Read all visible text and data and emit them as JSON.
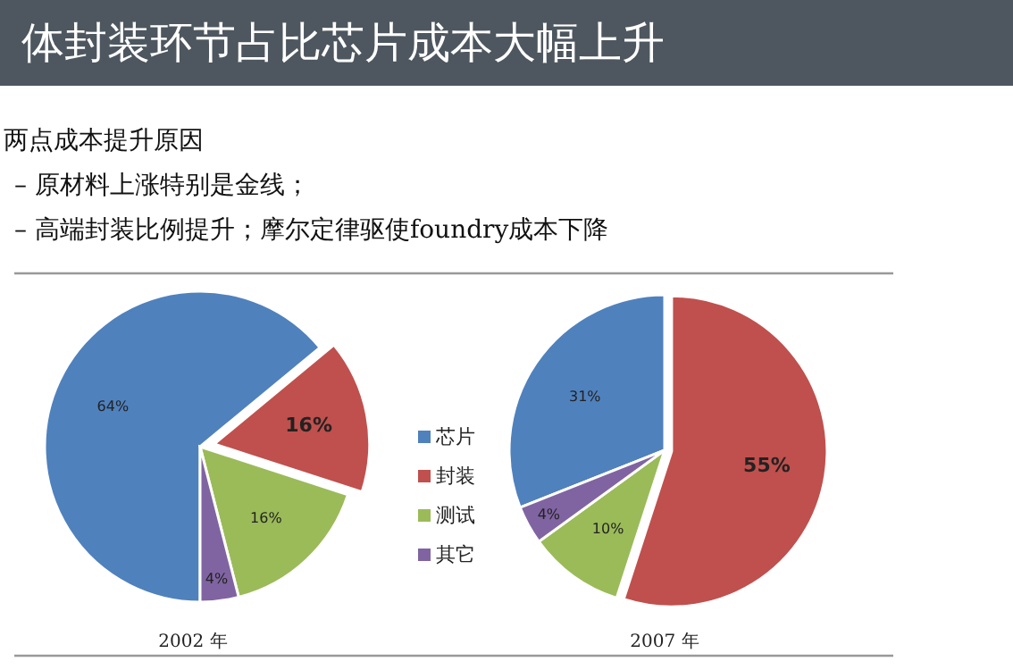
{
  "chart_data": [
    {
      "type": "pie",
      "title": "体封装环节占比芯片成本大幅上升",
      "annotations": [
        "两点成本提升原因",
        "– 原材料上涨特别是金线；",
        "– 高端封装比例提升；摩尔定律驱使foundry成本下降"
      ],
      "xlabel": "2002 年",
      "categories": [
        "芯片",
        "封装",
        "测试",
        "其它"
      ],
      "values": [
        64,
        16,
        16,
        4
      ],
      "value_labels": [
        "64%",
        "16%",
        "16%",
        "4%"
      ],
      "colors": [
        "#4f81bd",
        "#c0504d",
        "#9bbb59",
        "#8064a2"
      ],
      "legend": "right"
    },
    {
      "type": "pie",
      "xlabel": "2007 年",
      "categories": [
        null,
        null,
        null,
        null
      ],
      "values": [
        31,
        55,
        10,
        4
      ],
      "value_labels": [
        "31%",
        "55%",
        "10%",
        "4%"
      ],
      "colors": [
        "#4f81bd",
        "#c0504d",
        "#9bbb59",
        "#8064a2"
      ]
    }
  ]
}
